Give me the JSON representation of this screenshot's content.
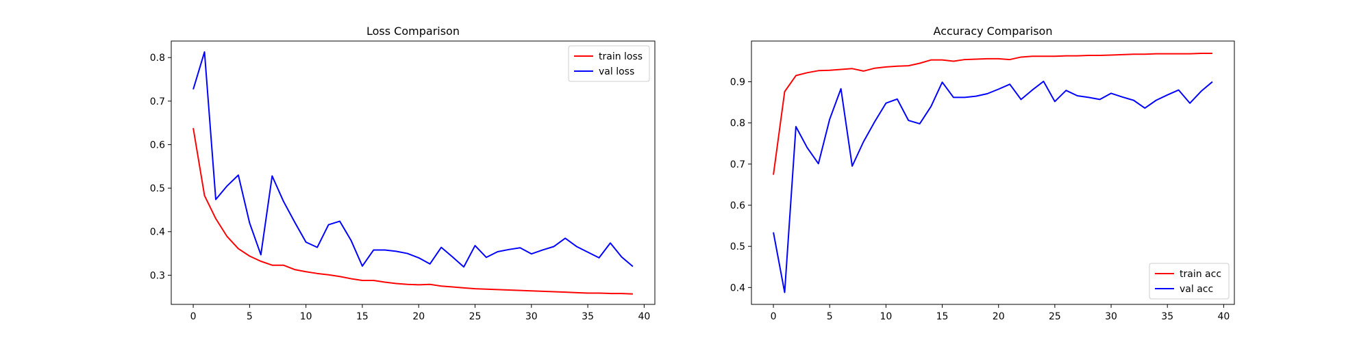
{
  "figure": {
    "background": "#ffffff"
  },
  "chart_data": [
    {
      "type": "line",
      "title": "Loss Comparison",
      "xlabel": "",
      "ylabel": "",
      "xlim": [
        -1.95,
        40.95
      ],
      "ylim": [
        0.233,
        0.838
      ],
      "xticks": [
        "0",
        "5",
        "10",
        "15",
        "20",
        "25",
        "30",
        "35",
        "40"
      ],
      "yticks": [
        "0.3",
        "0.4",
        "0.5",
        "0.6",
        "0.7",
        "0.8"
      ],
      "grid": false,
      "legend_position": "top-right",
      "series": [
        {
          "name": "train loss",
          "color": "#ff0000",
          "x": [
            0,
            1,
            2,
            3,
            4,
            5,
            6,
            7,
            8,
            9,
            10,
            11,
            12,
            13,
            14,
            15,
            16,
            17,
            18,
            19,
            20,
            21,
            22,
            23,
            24,
            25,
            26,
            27,
            28,
            29,
            30,
            31,
            32,
            33,
            34,
            35,
            36,
            37,
            38,
            39
          ],
          "values": [
            0.638,
            0.483,
            0.43,
            0.389,
            0.361,
            0.344,
            0.332,
            0.323,
            0.323,
            0.313,
            0.308,
            0.304,
            0.301,
            0.297,
            0.292,
            0.288,
            0.288,
            0.284,
            0.281,
            0.279,
            0.278,
            0.279,
            0.275,
            0.273,
            0.271,
            0.269,
            0.268,
            0.267,
            0.266,
            0.265,
            0.264,
            0.263,
            0.262,
            0.261,
            0.26,
            0.259,
            0.259,
            0.258,
            0.258,
            0.257
          ]
        },
        {
          "name": "val loss",
          "color": "#0000ff",
          "x": [
            0,
            1,
            2,
            3,
            4,
            5,
            6,
            7,
            8,
            9,
            10,
            11,
            12,
            13,
            14,
            15,
            16,
            17,
            18,
            19,
            20,
            21,
            22,
            23,
            24,
            25,
            26,
            27,
            28,
            29,
            30,
            31,
            32,
            33,
            34,
            35,
            36,
            37,
            38,
            39
          ],
          "values": [
            0.727,
            0.813,
            0.474,
            0.505,
            0.53,
            0.42,
            0.347,
            0.528,
            0.47,
            0.422,
            0.376,
            0.364,
            0.416,
            0.424,
            0.38,
            0.321,
            0.358,
            0.358,
            0.355,
            0.35,
            0.34,
            0.326,
            0.364,
            0.342,
            0.319,
            0.368,
            0.341,
            0.354,
            0.359,
            0.363,
            0.349,
            0.358,
            0.366,
            0.385,
            0.366,
            0.353,
            0.34,
            0.374,
            0.342,
            0.32
          ]
        }
      ]
    },
    {
      "type": "line",
      "title": "Accuracy Comparison",
      "xlabel": "",
      "ylabel": "",
      "xlim": [
        -1.95,
        40.95
      ],
      "ylim": [
        0.359,
        0.999
      ],
      "xticks": [
        "0",
        "5",
        "10",
        "15",
        "20",
        "25",
        "30",
        "35",
        "40"
      ],
      "yticks": [
        "0.4",
        "0.5",
        "0.6",
        "0.7",
        "0.8",
        "0.9"
      ],
      "grid": false,
      "legend_position": "bottom-right",
      "series": [
        {
          "name": "train acc",
          "color": "#ff0000",
          "x": [
            0,
            1,
            2,
            3,
            4,
            5,
            6,
            7,
            8,
            9,
            10,
            11,
            12,
            13,
            14,
            15,
            16,
            17,
            18,
            19,
            20,
            21,
            22,
            23,
            24,
            25,
            26,
            27,
            28,
            29,
            30,
            31,
            32,
            33,
            34,
            35,
            36,
            37,
            38,
            39
          ],
          "values": [
            0.674,
            0.876,
            0.915,
            0.922,
            0.927,
            0.928,
            0.93,
            0.932,
            0.926,
            0.933,
            0.936,
            0.938,
            0.939,
            0.945,
            0.953,
            0.953,
            0.95,
            0.954,
            0.955,
            0.956,
            0.956,
            0.954,
            0.96,
            0.962,
            0.962,
            0.962,
            0.963,
            0.963,
            0.964,
            0.964,
            0.965,
            0.966,
            0.967,
            0.967,
            0.968,
            0.968,
            0.968,
            0.968,
            0.969,
            0.969
          ]
        },
        {
          "name": "val acc",
          "color": "#0000ff",
          "x": [
            0,
            1,
            2,
            3,
            4,
            5,
            6,
            7,
            8,
            9,
            10,
            11,
            12,
            13,
            14,
            15,
            16,
            17,
            18,
            19,
            20,
            21,
            22,
            23,
            24,
            25,
            26,
            27,
            28,
            29,
            30,
            31,
            32,
            33,
            34,
            35,
            36,
            37,
            38,
            39
          ],
          "values": [
            0.534,
            0.388,
            0.791,
            0.74,
            0.701,
            0.809,
            0.883,
            0.695,
            0.754,
            0.803,
            0.848,
            0.858,
            0.806,
            0.798,
            0.84,
            0.899,
            0.862,
            0.862,
            0.865,
            0.871,
            0.882,
            0.894,
            0.857,
            0.88,
            0.901,
            0.852,
            0.879,
            0.866,
            0.862,
            0.857,
            0.872,
            0.863,
            0.855,
            0.836,
            0.855,
            0.868,
            0.88,
            0.848,
            0.877,
            0.9
          ]
        }
      ]
    }
  ]
}
